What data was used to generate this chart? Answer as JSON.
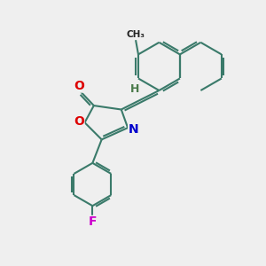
{
  "bg_color": "#efefef",
  "bond_color": "#3a7a6a",
  "bond_width": 1.5,
  "atom_colors": {
    "O": "#dd0000",
    "N": "#0000cc",
    "F": "#cc00cc",
    "H": "#4a7a4a"
  },
  "font_size_atom": 10,
  "font_size_H": 9,
  "figsize": [
    3.0,
    3.0
  ],
  "dpi": 100
}
